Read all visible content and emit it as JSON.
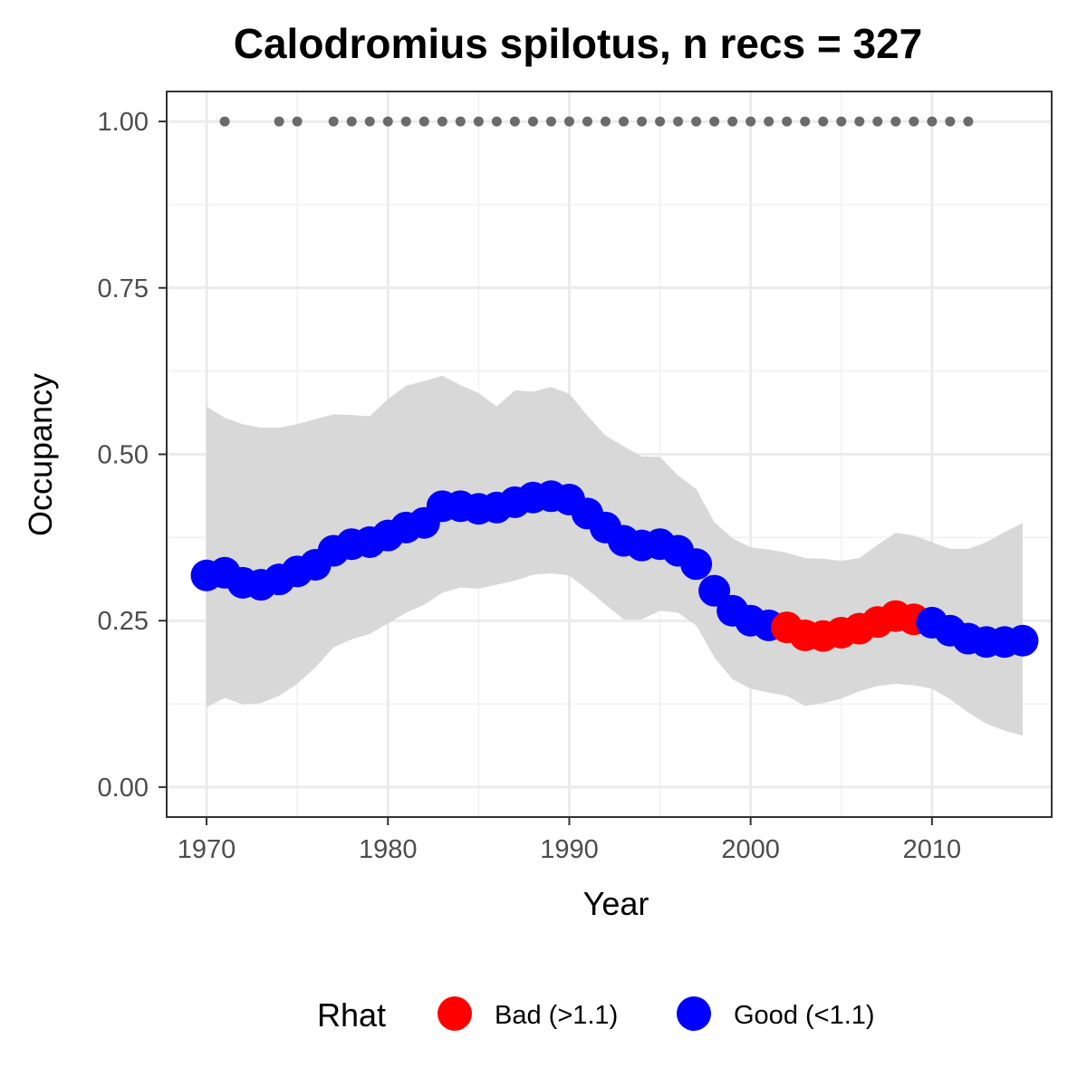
{
  "chart_data": {
    "type": "line",
    "title": "Calodromius spilotus, n recs = 327",
    "xlabel": "Year",
    "ylabel": "Occupancy",
    "xlim": [
      1967.8,
      2016.6
    ],
    "ylim": [
      -0.045,
      1.045
    ],
    "x_ticks": [
      1970,
      1980,
      1990,
      2000,
      2010
    ],
    "x_tick_labels": [
      "1970",
      "1980",
      "1990",
      "2000",
      "2010"
    ],
    "y_ticks": [
      0,
      0.25,
      0.5,
      0.75,
      1.0
    ],
    "y_tick_labels": [
      "0.00",
      "0.25",
      "0.50",
      "0.75",
      "1.00"
    ],
    "grid": true,
    "legend": {
      "title": "Rhat",
      "position": "bottom",
      "entries": [
        {
          "label": "Bad (>1.1)",
          "color": "#ff0000"
        },
        {
          "label": "Good (<1.1)",
          "color": "#0000ff"
        }
      ]
    },
    "colors": {
      "bad": "#ff0000",
      "good": "#0000ff",
      "ribbon": "#d6d6d6",
      "records": "#6b6b6b"
    },
    "series": [
      {
        "x": [
          1970,
          1971,
          1972,
          1973,
          1974,
          1975,
          1976,
          1977,
          1978,
          1979,
          1980,
          1981,
          1982,
          1983,
          1984,
          1985,
          1986,
          1987,
          1988,
          1989,
          1990,
          1991,
          1992,
          1993,
          1994,
          1995,
          1996,
          1997,
          1998,
          1999,
          2000,
          2001,
          2002,
          2003,
          2004,
          2005,
          2006,
          2007,
          2008,
          2009,
          2010,
          2011,
          2012,
          2013,
          2014,
          2015
        ],
        "mean": [
          0.318,
          0.322,
          0.307,
          0.304,
          0.312,
          0.324,
          0.334,
          0.355,
          0.365,
          0.368,
          0.378,
          0.39,
          0.397,
          0.422,
          0.422,
          0.418,
          0.42,
          0.428,
          0.435,
          0.437,
          0.432,
          0.411,
          0.39,
          0.37,
          0.363,
          0.365,
          0.355,
          0.335,
          0.295,
          0.265,
          0.25,
          0.243,
          0.24,
          0.228,
          0.227,
          0.232,
          0.238,
          0.248,
          0.257,
          0.252,
          0.247,
          0.235,
          0.223,
          0.218,
          0.218,
          0.22
        ],
        "lower": [
          0.12,
          0.134,
          0.124,
          0.126,
          0.137,
          0.155,
          0.18,
          0.21,
          0.222,
          0.23,
          0.246,
          0.262,
          0.274,
          0.292,
          0.3,
          0.298,
          0.304,
          0.31,
          0.319,
          0.321,
          0.318,
          0.297,
          0.274,
          0.252,
          0.252,
          0.265,
          0.262,
          0.243,
          0.195,
          0.162,
          0.148,
          0.142,
          0.137,
          0.122,
          0.126,
          0.133,
          0.144,
          0.152,
          0.155,
          0.153,
          0.148,
          0.132,
          0.112,
          0.095,
          0.085,
          0.077
        ],
        "upper": [
          0.572,
          0.555,
          0.545,
          0.54,
          0.54,
          0.545,
          0.553,
          0.56,
          0.559,
          0.557,
          0.583,
          0.603,
          0.61,
          0.618,
          0.604,
          0.592,
          0.572,
          0.596,
          0.594,
          0.601,
          0.591,
          0.558,
          0.528,
          0.512,
          0.497,
          0.496,
          0.468,
          0.448,
          0.398,
          0.374,
          0.36,
          0.357,
          0.352,
          0.344,
          0.343,
          0.34,
          0.344,
          0.364,
          0.382,
          0.378,
          0.368,
          0.358,
          0.358,
          0.368,
          0.383,
          0.397
        ],
        "rhat": [
          "Good",
          "Good",
          "Good",
          "Good",
          "Good",
          "Good",
          "Good",
          "Good",
          "Good",
          "Good",
          "Good",
          "Good",
          "Good",
          "Good",
          "Good",
          "Good",
          "Good",
          "Good",
          "Good",
          "Good",
          "Good",
          "Good",
          "Good",
          "Good",
          "Good",
          "Good",
          "Good",
          "Good",
          "Good",
          "Good",
          "Good",
          "Good",
          "Bad",
          "Bad",
          "Bad",
          "Bad",
          "Bad",
          "Bad",
          "Bad",
          "Bad",
          "Good",
          "Good",
          "Good",
          "Good",
          "Good",
          "Good"
        ]
      }
    ],
    "record_years": [
      1971,
      1974,
      1975,
      1977,
      1978,
      1979,
      1980,
      1981,
      1982,
      1983,
      1984,
      1985,
      1986,
      1987,
      1988,
      1989,
      1990,
      1991,
      1992,
      1993,
      1994,
      1995,
      1996,
      1997,
      1998,
      1999,
      2000,
      2001,
      2002,
      2003,
      2004,
      2005,
      2006,
      2007,
      2008,
      2009,
      2010,
      2011,
      2012
    ],
    "record_value": 1.0
  }
}
